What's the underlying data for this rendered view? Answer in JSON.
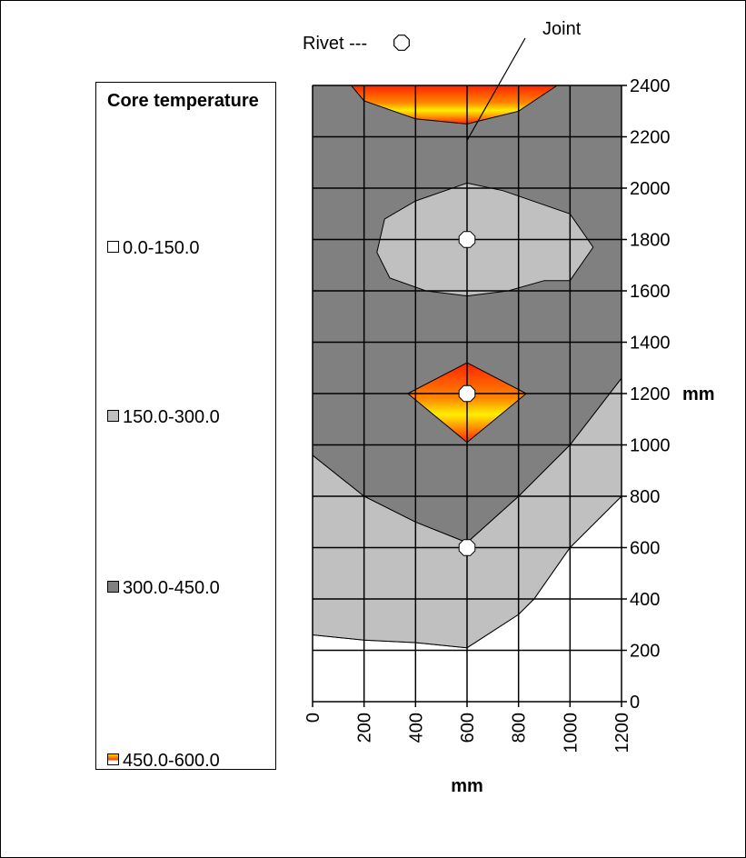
{
  "chart_data": {
    "type": "contour",
    "x_axis": {
      "label": "mm",
      "ticks": [
        "0",
        "200",
        "400",
        "600",
        "800",
        "1000",
        "1200"
      ],
      "range": [
        0,
        1200
      ]
    },
    "y_axis": {
      "label": "mm",
      "ticks": [
        "0",
        "200",
        "400",
        "600",
        "800",
        "1000",
        "1200",
        "1400",
        "1600",
        "1800",
        "2000",
        "2200",
        "2400"
      ],
      "range": [
        0,
        2400
      ],
      "position": "right"
    },
    "grid": true,
    "legend": {
      "title": "Core temperature",
      "placement": "left",
      "items": [
        {
          "label": "0.0-150.0",
          "color": "#ffffff"
        },
        {
          "label": "150.0-300.0",
          "color": "#c0c0c0"
        },
        {
          "label": "300.0-450.0",
          "color": "#808080"
        },
        {
          "label": "450.0-600.0",
          "color": "#ff6600"
        }
      ]
    },
    "annotations": {
      "rivet_label": "Rivet ---",
      "joint_label": "Joint"
    },
    "rivets": [
      {
        "x": 600,
        "y": 1800
      },
      {
        "x": 600,
        "y": 1200
      },
      {
        "x": 600,
        "y": 600
      }
    ],
    "joint_pointer": {
      "x": 600,
      "y": 2200
    },
    "regions": [
      {
        "band": "0.0-150.0",
        "polygon": [
          [
            0,
            0
          ],
          [
            1200,
            0
          ],
          [
            1200,
            800
          ],
          [
            1000,
            600
          ],
          [
            860,
            400
          ],
          [
            800,
            340
          ],
          [
            600,
            210
          ],
          [
            400,
            230
          ],
          [
            200,
            240
          ],
          [
            0,
            260
          ]
        ]
      },
      {
        "band": "150.0-300.0",
        "polygon": [
          [
            0,
            260
          ],
          [
            200,
            240
          ],
          [
            400,
            230
          ],
          [
            600,
            210
          ],
          [
            800,
            340
          ],
          [
            860,
            400
          ],
          [
            1000,
            600
          ],
          [
            1200,
            800
          ],
          [
            1200,
            1260
          ],
          [
            1000,
            1000
          ],
          [
            800,
            800
          ],
          [
            600,
            620
          ],
          [
            400,
            700
          ],
          [
            200,
            800
          ],
          [
            0,
            960
          ]
        ]
      },
      {
        "band": "300.0-450.0",
        "polygon": [
          [
            0,
            960
          ],
          [
            200,
            800
          ],
          [
            400,
            700
          ],
          [
            600,
            620
          ],
          [
            800,
            800
          ],
          [
            1000,
            1000
          ],
          [
            1200,
            1260
          ],
          [
            1200,
            2400
          ],
          [
            0,
            2400
          ]
        ]
      },
      {
        "band": "150.0-300.0",
        "polygon": [
          [
            600,
            2020
          ],
          [
            740,
            1990
          ],
          [
            1000,
            1900
          ],
          [
            1090,
            1770
          ],
          [
            1000,
            1640
          ],
          [
            900,
            1640
          ],
          [
            760,
            1600
          ],
          [
            600,
            1580
          ],
          [
            440,
            1600
          ],
          [
            300,
            1650
          ],
          [
            250,
            1750
          ],
          [
            280,
            1880
          ],
          [
            400,
            1950
          ]
        ]
      },
      {
        "band": "450.0-600.0",
        "polygon": [
          [
            600,
            1320
          ],
          [
            830,
            1200
          ],
          [
            600,
            1010
          ],
          [
            370,
            1200
          ]
        ]
      },
      {
        "band": "450.0-600.0",
        "polygon": [
          [
            150,
            2400
          ],
          [
            950,
            2400
          ],
          [
            800,
            2300
          ],
          [
            600,
            2250
          ],
          [
            400,
            2270
          ],
          [
            200,
            2340
          ]
        ]
      }
    ]
  }
}
